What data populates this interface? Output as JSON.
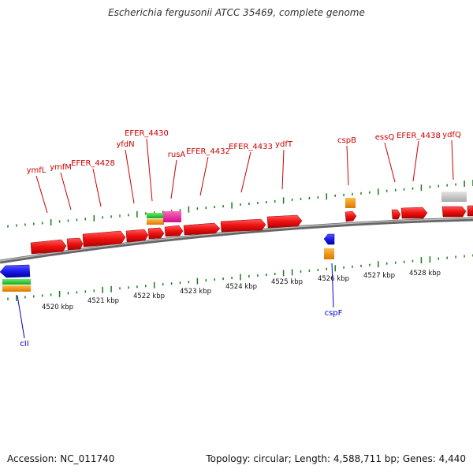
{
  "title": "Escherichia fergusonii ATCC 35469, complete genome",
  "accession_label": "Accession: NC_011740",
  "summary_label": "Topology: circular; Length: 4,588,711 bp; Genes: 4,440",
  "colors": {
    "forward_gene": "#ee1111",
    "reverse_gene": "#1a1aee",
    "label_forward": "#cc0000",
    "label_reverse": "#0000cc",
    "tick": "#1a7a1a",
    "backbone": "#888888",
    "orange": "#ff9900",
    "green": "#22cc33",
    "magenta": "#ee2299",
    "gray": "#c8c8c8"
  },
  "scale_labels": [
    "4520 kbp",
    "4521 kbp",
    "4522 kbp",
    "4523 kbp",
    "4524 kbp",
    "4525 kbp",
    "4526 kbp",
    "4527 kbp",
    "4528 kbp"
  ],
  "forward_gene_labels": [
    "ymfL",
    "ymfM",
    "EFER_4428",
    "yfdN",
    "EFER_4430",
    "rusA",
    "EFER_4432",
    "EFER_4433",
    "ydfT",
    "cspB",
    "essQ",
    "EFER_4438",
    "ydfQ"
  ],
  "reverse_gene_labels": [
    "cII",
    "cspF"
  ]
}
